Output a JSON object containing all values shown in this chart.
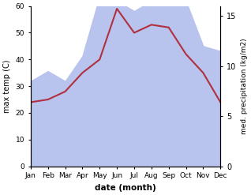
{
  "months": [
    "Jan",
    "Feb",
    "Mar",
    "Apr",
    "May",
    "Jun",
    "Jul",
    "Aug",
    "Sep",
    "Oct",
    "Nov",
    "Dec"
  ],
  "temp": [
    24,
    25,
    28,
    35,
    40,
    59,
    50,
    53,
    52,
    42,
    35,
    24
  ],
  "precip": [
    8.5,
    9.5,
    8.5,
    11.0,
    17.0,
    16.5,
    15.5,
    16.5,
    17.0,
    16.5,
    12.0,
    11.5
  ],
  "temp_ylim": [
    0,
    60
  ],
  "precip_ylim": [
    0,
    16
  ],
  "temp_yticks": [
    0,
    10,
    20,
    30,
    40,
    50,
    60
  ],
  "precip_yticks": [
    0,
    5,
    10,
    15
  ],
  "ylabel_left": "max temp (C)",
  "ylabel_right": "med. precipitation (kg/m2)",
  "xlabel": "date (month)",
  "temp_color": "#b03040",
  "precip_fill_color": "#b8c4ee",
  "background_color": "#ffffff"
}
